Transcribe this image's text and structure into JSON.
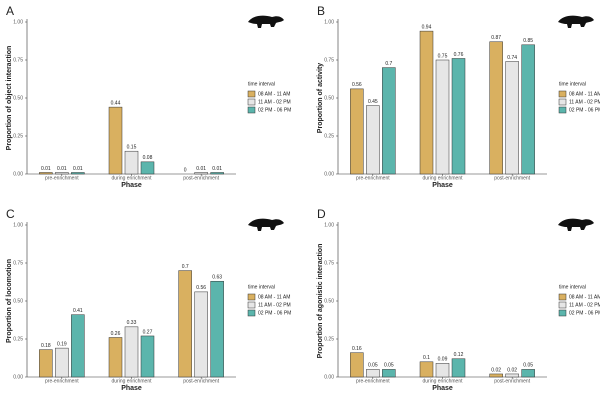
{
  "chart_data": [
    {
      "type": "bar",
      "panel": "A",
      "ylabel": "Proportion of object interaction",
      "xlabel": "Phase",
      "legend_title": "time interval",
      "categories": [
        "pre-enrichment",
        "during enrichment",
        "post-enrichment"
      ],
      "series": [
        {
          "name": "08 AM - 11 AM",
          "color": "#d9b060",
          "values": [
            0.01,
            0.44,
            0
          ]
        },
        {
          "name": "11 AM - 02 PM",
          "color": "#e6e6e6",
          "values": [
            0.01,
            0.15,
            0.01
          ]
        },
        {
          "name": "02 PM - 06 PM",
          "color": "#5bb5ac",
          "values": [
            0.01,
            0.08,
            0.01
          ]
        }
      ],
      "ylim": [
        0,
        1
      ],
      "yticks": [
        {
          "value": 0,
          "label": "0.00"
        },
        {
          "value": 0.25,
          "label": "0.25"
        },
        {
          "value": 0.5,
          "label": "0.50"
        },
        {
          "value": 0.75,
          "label": "0.75"
        },
        {
          "value": 1,
          "label": "1.00"
        }
      ]
    },
    {
      "type": "bar",
      "panel": "B",
      "ylabel": "Proportion of activity",
      "xlabel": "Phase",
      "legend_title": "time interval",
      "categories": [
        "pre-enrichment",
        "during enrichment",
        "post-enrichment"
      ],
      "series": [
        {
          "name": "08 AM - 11 AM",
          "color": "#d9b060",
          "values": [
            0.56,
            0.94,
            0.87
          ]
        },
        {
          "name": "11 AM - 02 PM",
          "color": "#e6e6e6",
          "values": [
            0.45,
            0.75,
            0.74
          ]
        },
        {
          "name": "02 PM - 06 PM",
          "color": "#5bb5ac",
          "values": [
            0.7,
            0.76,
            0.85
          ]
        }
      ],
      "ylim": [
        0,
        1
      ],
      "yticks": [
        {
          "value": 0,
          "label": "0.00"
        },
        {
          "value": 0.25,
          "label": "0.25"
        },
        {
          "value": 0.5,
          "label": "0.50"
        },
        {
          "value": 0.75,
          "label": "0.75"
        },
        {
          "value": 1,
          "label": "1.00"
        }
      ]
    },
    {
      "type": "bar",
      "panel": "C",
      "ylabel": "Proportion of locomotion",
      "xlabel": "Phase",
      "legend_title": "time interval",
      "categories": [
        "pre-enrichment",
        "during enrichment",
        "post-enrichment"
      ],
      "series": [
        {
          "name": "08 AM - 11 AM",
          "color": "#d9b060",
          "values": [
            0.18,
            0.26,
            0.7
          ]
        },
        {
          "name": "11 AM - 02 PM",
          "color": "#e6e6e6",
          "values": [
            0.19,
            0.33,
            0.56
          ]
        },
        {
          "name": "02 PM - 06 PM",
          "color": "#5bb5ac",
          "values": [
            0.41,
            0.27,
            0.63
          ]
        }
      ],
      "ylim": [
        0,
        1
      ],
      "yticks": [
        {
          "value": 0,
          "label": "0.00"
        },
        {
          "value": 0.25,
          "label": "0.25"
        },
        {
          "value": 0.5,
          "label": "0.50"
        },
        {
          "value": 0.75,
          "label": "0.75"
        },
        {
          "value": 1,
          "label": "1.00"
        }
      ]
    },
    {
      "type": "bar",
      "panel": "D",
      "ylabel": "Proportion of agonistic interaction",
      "xlabel": "Phase",
      "legend_title": "time interval",
      "categories": [
        "pre-enrichment",
        "during enrichment",
        "post-enrichment"
      ],
      "series": [
        {
          "name": "08 AM - 11 AM",
          "color": "#d9b060",
          "values": [
            0.16,
            0.1,
            0.02
          ]
        },
        {
          "name": "11 AM - 02 PM",
          "color": "#e6e6e6",
          "values": [
            0.05,
            0.09,
            0.02
          ]
        },
        {
          "name": "02 PM - 06 PM",
          "color": "#5bb5ac",
          "values": [
            0.05,
            0.12,
            0.05
          ]
        }
      ],
      "ylim": [
        0,
        1
      ],
      "yticks": [
        {
          "value": 0,
          "label": "0.00"
        },
        {
          "value": 0.25,
          "label": "0.25"
        },
        {
          "value": 0.5,
          "label": "0.50"
        },
        {
          "value": 0.75,
          "label": "0.75"
        },
        {
          "value": 1,
          "label": "1.00"
        }
      ]
    }
  ]
}
